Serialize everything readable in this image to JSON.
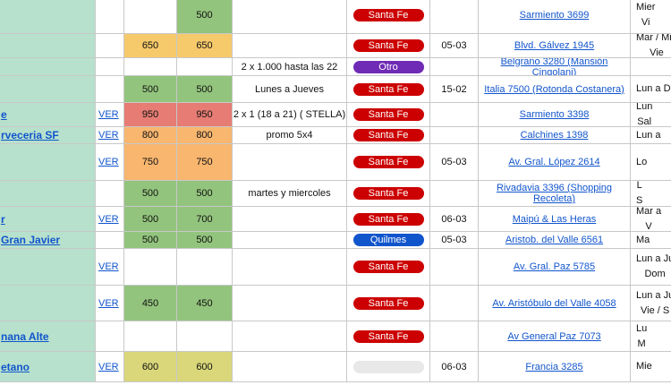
{
  "colors": {
    "c0_bg": "#b7e1cd",
    "price_green": "#93c47d",
    "price_yellow": "#f6c96b",
    "price_red": "#e67c73",
    "price_orange": "#f8b66f",
    "price_olive": "#d9d77a",
    "santa_fe": "#cc0000",
    "otro": "#6f2bb5",
    "quilmes": "#1155cc",
    "empty_pill": "#e8e8e8"
  },
  "rows": [
    {
      "name": "",
      "ver": "",
      "p1": "",
      "p2": "500",
      "p1_color": "",
      "p2_color": "price_green",
      "promo": "",
      "zone": "Santa Fe",
      "zone_color": "santa_fe",
      "date": "",
      "address": "Sarmiento 3699",
      "schedule": "Mier\nVi"
    },
    {
      "name": "",
      "ver": "",
      "p1": "650",
      "p2": "650",
      "p1_color": "price_yellow",
      "p2_color": "price_yellow",
      "promo": "",
      "zone": "Santa Fe",
      "zone_color": "santa_fe",
      "date": "05-03",
      "address": "Blvd. Gálvez 1945",
      "schedule": "Mar / Mié\nVie"
    },
    {
      "name": "",
      "ver": "",
      "p1": "",
      "p2": "",
      "p1_color": "",
      "p2_color": "",
      "promo": "2 x 1.000 hasta las 22",
      "zone": "Otro",
      "zone_color": "otro",
      "date": "",
      "address": "Belgrano 3280 (Mansión Cingolani)",
      "schedule": ""
    },
    {
      "name": "",
      "ver": "",
      "p1": "500",
      "p2": "500",
      "p1_color": "price_green",
      "p2_color": "price_green",
      "promo": "Lunes a Jueves",
      "zone": "Santa Fe",
      "zone_color": "santa_fe",
      "date": "15-02",
      "address": "Italia 7500 (Rotonda Costanera)",
      "schedule": "Lun a D"
    },
    {
      "name": "e",
      "ver": "VER",
      "p1": "950",
      "p2": "950",
      "p1_color": "price_red",
      "p2_color": "price_red",
      "promo": "2 x 1 (18 a 21) ( STELLA)",
      "zone": "Santa Fe",
      "zone_color": "santa_fe",
      "date": "",
      "address": "Sarmiento 3398",
      "schedule": "Lun\nSal"
    },
    {
      "name": "rveceria SF",
      "ver": "VER",
      "p1": "800",
      "p2": "800",
      "p1_color": "price_orange",
      "p2_color": "price_orange",
      "promo": "promo 5x4",
      "zone": "Santa Fe",
      "zone_color": "santa_fe",
      "date": "",
      "address": "Calchines 1398",
      "schedule": "Lun a"
    },
    {
      "name": "",
      "ver": "VER",
      "p1": "750",
      "p2": "750",
      "p1_color": "price_orange",
      "p2_color": "price_orange",
      "promo": "",
      "zone": "Santa Fe",
      "zone_color": "santa_fe",
      "date": "05-03",
      "address": "Av. Gral. López 2614",
      "schedule": "Lo"
    },
    {
      "name": "",
      "ver": "",
      "p1": "500",
      "p2": "500",
      "p1_color": "price_green",
      "p2_color": "price_green",
      "promo": "martes y miercoles",
      "zone": "Santa Fe",
      "zone_color": "santa_fe",
      "date": "",
      "address": "Rivadavia 3396 (Shopping Recoleta)",
      "schedule": "L\nS"
    },
    {
      "name": "r",
      "ver": "VER",
      "p1": "500",
      "p2": "700",
      "p1_color": "price_green",
      "p2_color": "price_green",
      "promo": "",
      "zone": "Santa Fe",
      "zone_color": "santa_fe",
      "date": "06-03",
      "address": "Maipú & Las Heras",
      "schedule": "Mar a\nV"
    },
    {
      "name": "Gran Javier",
      "ver": "",
      "p1": "500",
      "p2": "500",
      "p1_color": "price_green",
      "p2_color": "price_green",
      "promo": "",
      "zone": "Quilmes",
      "zone_color": "quilmes",
      "date": "05-03",
      "address": "Aristob. del Valle 6561",
      "schedule": "Ma"
    },
    {
      "name": "",
      "ver": "VER",
      "p1": "",
      "p2": "",
      "p1_color": "",
      "p2_color": "",
      "promo": "",
      "zone": "Santa Fe",
      "zone_color": "santa_fe",
      "date": "",
      "address": "Av. Gral. Paz 5785",
      "schedule": "Lun a Ju\nDom"
    },
    {
      "name": "",
      "ver": "VER",
      "p1": "450",
      "p2": "450",
      "p1_color": "price_green",
      "p2_color": "price_green",
      "promo": "",
      "zone": "Santa Fe",
      "zone_color": "santa_fe",
      "date": "",
      "address": "Av. Aristóbulo del Valle 4058",
      "schedule": "Lun a Ju\nVie / S"
    },
    {
      "name": "nana Alte",
      "ver": "",
      "p1": "",
      "p2": "",
      "p1_color": "",
      "p2_color": "",
      "promo": "",
      "zone": "Santa Fe",
      "zone_color": "santa_fe",
      "date": "",
      "address": "Av General Paz 7073",
      "schedule": "Lu\nM"
    },
    {
      "name": "etano",
      "ver": "VER",
      "p1": "600",
      "p2": "600",
      "p1_color": "price_olive",
      "p2_color": "price_olive",
      "promo": "",
      "zone": "",
      "zone_color": "empty_pill",
      "date": "06-03",
      "address": "Francia 3285",
      "schedule": "Mie"
    }
  ]
}
